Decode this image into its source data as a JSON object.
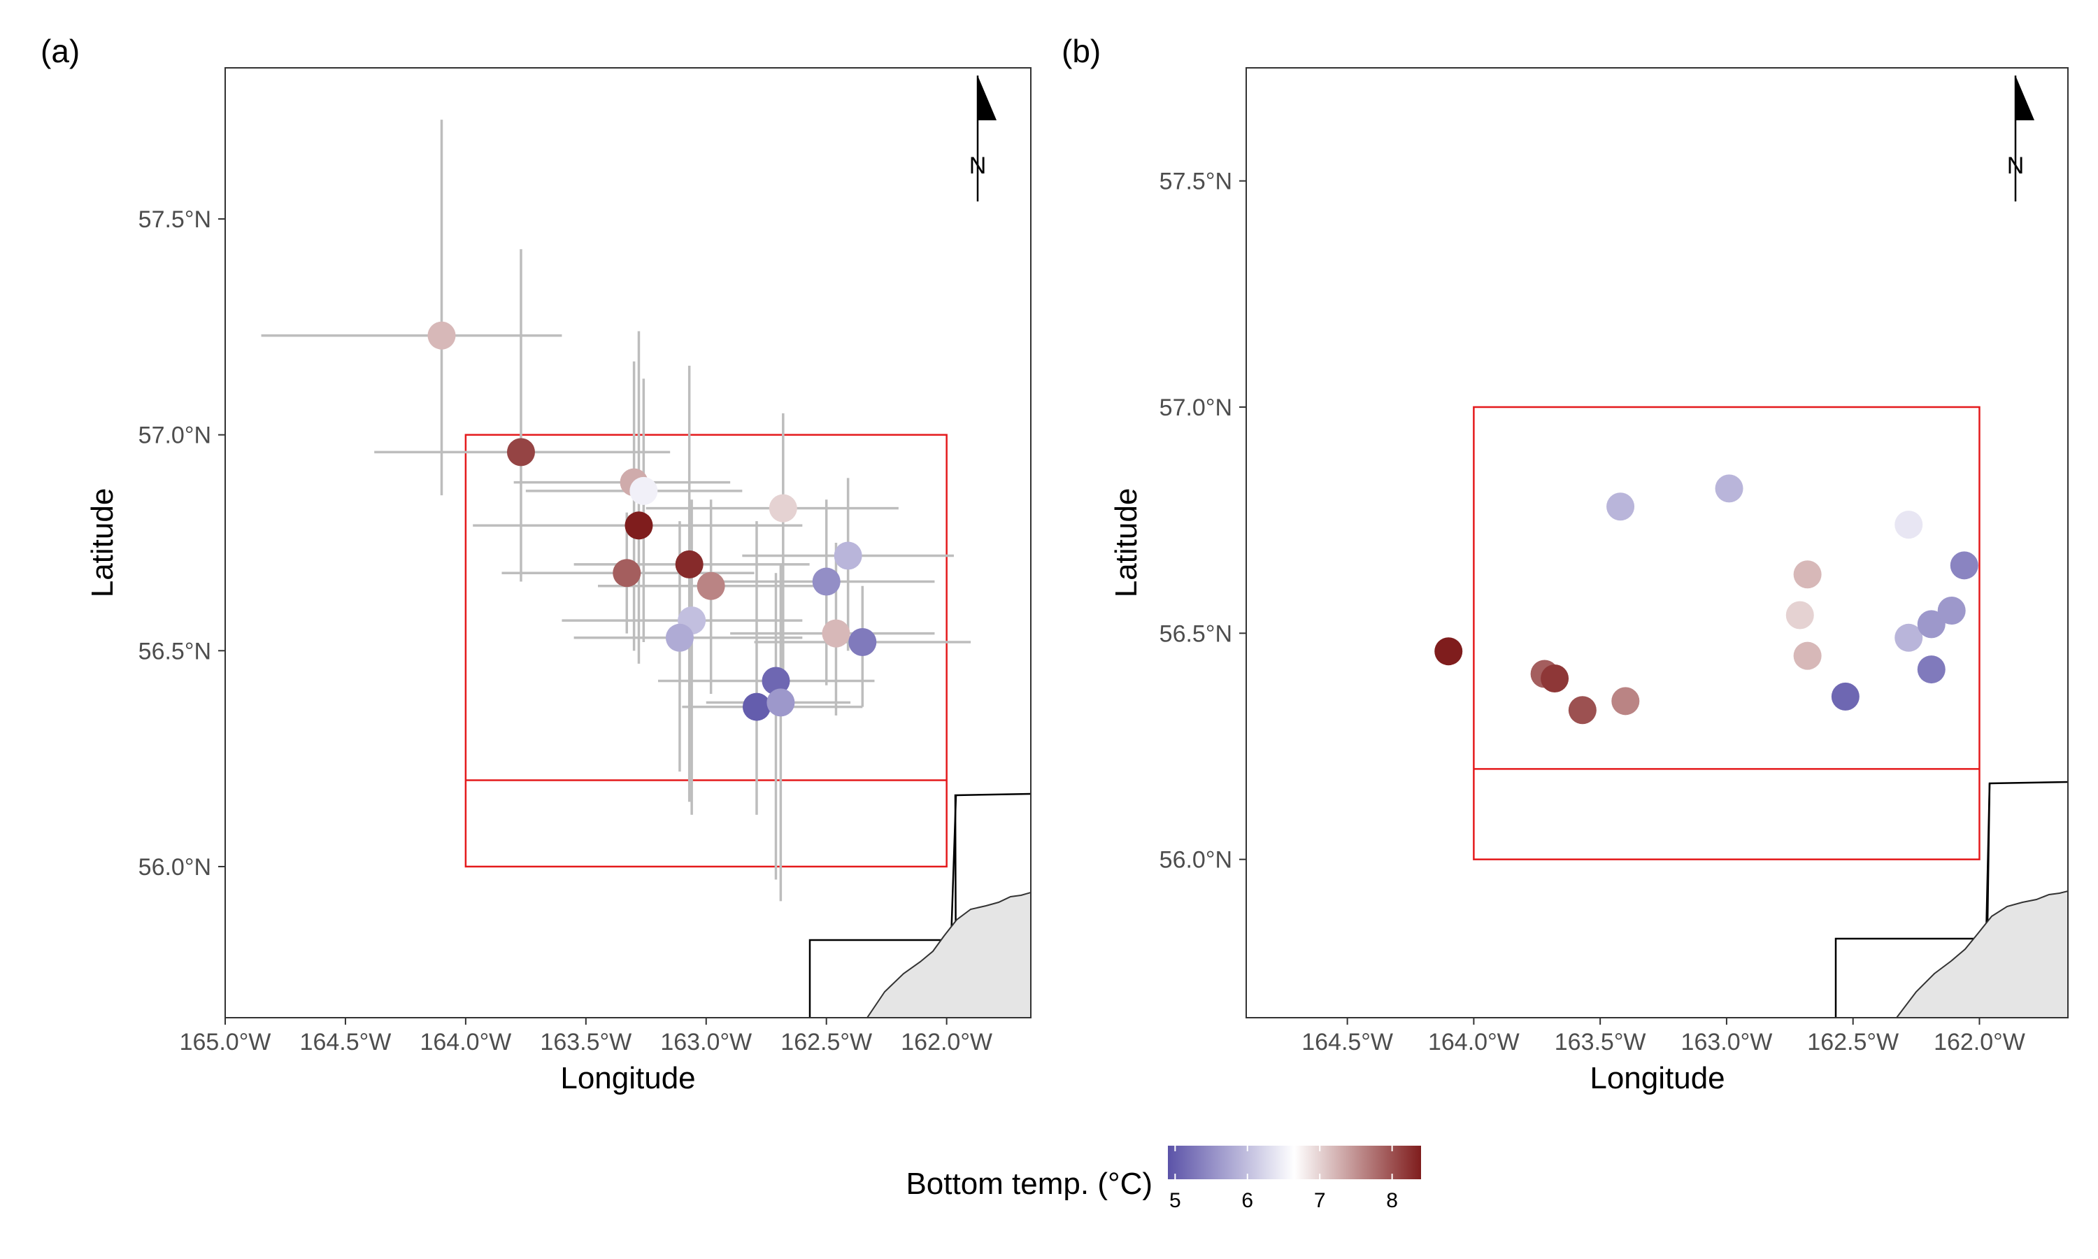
{
  "legend": {
    "title": "Bottom temp. (°C)",
    "ticks": [
      "5",
      "6",
      "7",
      "8"
    ],
    "tick_values": [
      5,
      6,
      7,
      8
    ],
    "range": [
      4.9,
      8.4
    ],
    "colors": {
      "low": "#5b53a8",
      "mid": "#ffffff",
      "high": "#7f1d1d"
    }
  },
  "chart_data": [
    {
      "type": "scatter",
      "panel_label": "(a)",
      "xlabel": "Longitude",
      "ylabel": "Latitude",
      "xlim": [
        -165.0,
        -161.65
      ],
      "ylim": [
        55.65,
        57.85
      ],
      "x_ticks": [
        "165.0°W",
        "164.5°W",
        "164.0°W",
        "163.5°W",
        "163.0°W",
        "162.5°W",
        "162.0°W"
      ],
      "x_tick_values": [
        -165.0,
        -164.5,
        -164.0,
        -163.5,
        -163.0,
        -162.5,
        -162.0
      ],
      "y_ticks": [
        "56.0°N",
        "56.5°N",
        "57.0°N",
        "57.5°N"
      ],
      "y_tick_values": [
        56.0,
        56.5,
        57.0,
        57.5
      ],
      "grid": false,
      "north_arrow": "N",
      "study_box": {
        "lon": [
          -164.0,
          -162.0
        ],
        "lat": [
          56.0,
          57.0
        ],
        "inner_line_lat": 56.2,
        "color": "#e41a1c"
      },
      "points": [
        {
          "lon": -164.1,
          "lat": 57.23,
          "temp": 7.2,
          "lon_err": [
            -164.85,
            -163.6
          ],
          "lat_err": [
            56.86,
            57.73
          ]
        },
        {
          "lon": -163.77,
          "lat": 56.96,
          "temp": 8.1,
          "lon_err": [
            -164.38,
            -163.15
          ],
          "lat_err": [
            56.66,
            57.43
          ]
        },
        {
          "lon": -163.3,
          "lat": 56.89,
          "temp": 7.3,
          "lon_err": [
            -163.8,
            -162.9
          ],
          "lat_err": [
            56.5,
            57.17
          ]
        },
        {
          "lon": -163.26,
          "lat": 56.87,
          "temp": 6.5,
          "lon_err": [
            -163.75,
            -162.85
          ],
          "lat_err": [
            56.52,
            57.13
          ]
        },
        {
          "lon": -163.28,
          "lat": 56.79,
          "temp": 8.5,
          "lon_err": [
            -163.97,
            -162.6
          ],
          "lat_err": [
            56.47,
            57.24
          ]
        },
        {
          "lon": -162.68,
          "lat": 56.83,
          "temp": 7.0,
          "lon_err": [
            -163.25,
            -162.2
          ],
          "lat_err": [
            56.37,
            57.05
          ]
        },
        {
          "lon": -163.07,
          "lat": 56.7,
          "temp": 8.3,
          "lon_err": [
            -163.55,
            -162.57
          ],
          "lat_err": [
            56.15,
            57.16
          ]
        },
        {
          "lon": -163.33,
          "lat": 56.68,
          "temp": 7.9,
          "lon_err": [
            -163.85,
            -162.8
          ],
          "lat_err": [
            56.54,
            56.82
          ]
        },
        {
          "lon": -162.98,
          "lat": 56.65,
          "temp": 7.6,
          "lon_err": [
            -163.45,
            -162.5
          ],
          "lat_err": [
            56.4,
            56.85
          ]
        },
        {
          "lon": -162.41,
          "lat": 56.72,
          "temp": 5.9,
          "lon_err": [
            -162.85,
            -161.97
          ],
          "lat_err": [
            56.5,
            56.9
          ]
        },
        {
          "lon": -162.5,
          "lat": 56.66,
          "temp": 5.5,
          "lon_err": [
            -163.0,
            -162.05
          ],
          "lat_err": [
            56.42,
            56.85
          ]
        },
        {
          "lon": -163.06,
          "lat": 56.57,
          "temp": 6.0,
          "lon_err": [
            -163.6,
            -162.6
          ],
          "lat_err": [
            56.12,
            56.85
          ]
        },
        {
          "lon": -163.11,
          "lat": 56.53,
          "temp": 5.8,
          "lon_err": [
            -163.55,
            -162.6
          ],
          "lat_err": [
            56.22,
            56.8
          ]
        },
        {
          "lon": -162.46,
          "lat": 56.54,
          "temp": 7.2,
          "lon_err": [
            -162.9,
            -162.05
          ],
          "lat_err": [
            56.35,
            56.75
          ]
        },
        {
          "lon": -162.35,
          "lat": 56.52,
          "temp": 5.3,
          "lon_err": [
            -162.8,
            -161.9
          ],
          "lat_err": [
            56.37,
            56.65
          ]
        },
        {
          "lon": -162.71,
          "lat": 56.43,
          "temp": 5.1,
          "lon_err": [
            -163.2,
            -162.3
          ],
          "lat_err": [
            55.97,
            56.68
          ]
        },
        {
          "lon": -162.79,
          "lat": 56.37,
          "temp": 5.0,
          "lon_err": [
            -163.1,
            -162.35
          ],
          "lat_err": [
            56.12,
            56.8
          ]
        },
        {
          "lon": -162.69,
          "lat": 56.38,
          "temp": 5.6,
          "lon_err": [
            -163.0,
            -162.4
          ],
          "lat_err": [
            55.92,
            56.7
          ]
        }
      ]
    },
    {
      "type": "scatter",
      "panel_label": "(b)",
      "xlabel": "Longitude",
      "ylabel": "Latitude",
      "xlim": [
        -164.9,
        -161.65
      ],
      "ylim": [
        55.65,
        57.75
      ],
      "x_ticks": [
        "164.5°W",
        "164.0°W",
        "163.5°W",
        "163.0°W",
        "162.5°W",
        "162.0°W"
      ],
      "x_tick_values": [
        -164.5,
        -164.0,
        -163.5,
        -163.0,
        -162.5,
        -162.0
      ],
      "y_ticks": [
        "56.0°N",
        "56.5°N",
        "57.0°N",
        "57.5°N"
      ],
      "y_tick_values": [
        56.0,
        56.5,
        57.0,
        57.5
      ],
      "grid": false,
      "north_arrow": "N",
      "study_box": {
        "lon": [
          -164.0,
          -162.0
        ],
        "lat": [
          56.0,
          57.0
        ],
        "inner_line_lat": 56.2,
        "color": "#e41a1c"
      },
      "points": [
        {
          "lon": -164.1,
          "lat": 56.46,
          "temp": 8.5
        },
        {
          "lon": -163.72,
          "lat": 56.41,
          "temp": 7.9
        },
        {
          "lon": -163.68,
          "lat": 56.4,
          "temp": 8.2
        },
        {
          "lon": -163.57,
          "lat": 56.33,
          "temp": 8.0
        },
        {
          "lon": -163.4,
          "lat": 56.35,
          "temp": 7.6
        },
        {
          "lon": -163.42,
          "lat": 56.78,
          "temp": 5.9
        },
        {
          "lon": -162.99,
          "lat": 56.82,
          "temp": 5.9
        },
        {
          "lon": -162.68,
          "lat": 56.63,
          "temp": 7.2
        },
        {
          "lon": -162.71,
          "lat": 56.54,
          "temp": 7.0
        },
        {
          "lon": -162.68,
          "lat": 56.45,
          "temp": 7.2
        },
        {
          "lon": -162.53,
          "lat": 56.36,
          "temp": 5.1
        },
        {
          "lon": -162.28,
          "lat": 56.74,
          "temp": 6.4
        },
        {
          "lon": -162.28,
          "lat": 56.49,
          "temp": 5.9
        },
        {
          "lon": -162.19,
          "lat": 56.52,
          "temp": 5.6
        },
        {
          "lon": -162.11,
          "lat": 56.55,
          "temp": 5.6
        },
        {
          "lon": -162.06,
          "lat": 56.65,
          "temp": 5.4
        },
        {
          "lon": -162.19,
          "lat": 56.42,
          "temp": 5.3
        }
      ]
    }
  ]
}
